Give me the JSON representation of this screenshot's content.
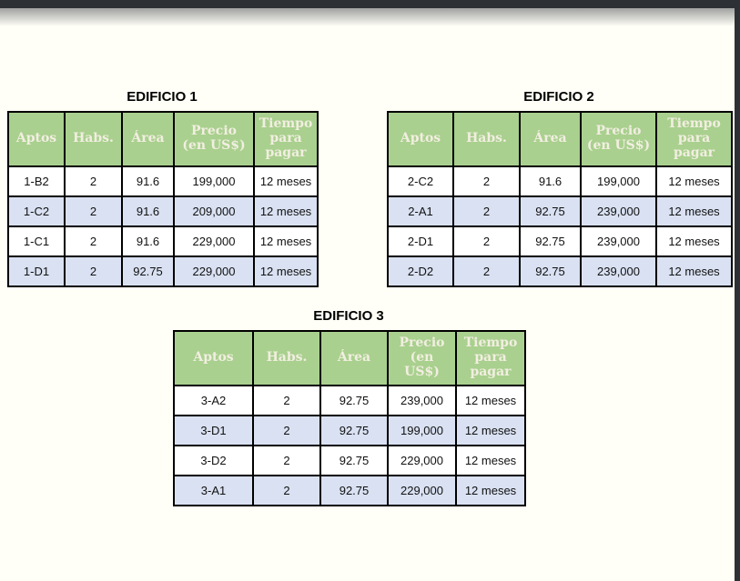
{
  "colors": {
    "header_bg": "#a9d08e",
    "header_text": "#f2eee1",
    "alt_row_bg": "#d9e1f2",
    "row_bg": "#ffffff",
    "border": "#000000",
    "chrome": "#2d3136",
    "page_bg": "#fffef7",
    "title_text": "#000000"
  },
  "tables": [
    {
      "title": "EDIFICIO 1",
      "headers": [
        "Aptos",
        "Habs.",
        "Área",
        "Precio\n(en US$)",
        "Tiempo\npara\npagar"
      ],
      "rows": [
        [
          "1-B2",
          "2",
          "91.6",
          "199,000",
          "12 meses"
        ],
        [
          "1-C2",
          "2",
          "91.6",
          "209,000",
          "12 meses"
        ],
        [
          "1-C1",
          "2",
          "91.6",
          "229,000",
          "12 meses"
        ],
        [
          "1-D1",
          "2",
          "92.75",
          "229,000",
          "12 meses"
        ]
      ]
    },
    {
      "title": "EDIFICIO 2",
      "headers": [
        "Aptos",
        "Habs.",
        "Área",
        "Precio\n(en US$)",
        "Tiempo\npara\npagar"
      ],
      "rows": [
        [
          "2-C2",
          "2",
          "91.6",
          "199,000",
          "12 meses"
        ],
        [
          "2-A1",
          "2",
          "92.75",
          "239,000",
          "12 meses"
        ],
        [
          "2-D1",
          "2",
          "92.75",
          "239,000",
          "12 meses"
        ],
        [
          "2-D2",
          "2",
          "92.75",
          "239,000",
          "12 meses"
        ]
      ]
    },
    {
      "title": "EDIFICIO 3",
      "headers": [
        "Aptos",
        "Habs.",
        "Área",
        "Precio\n(en\nUS$)",
        "Tiempo\npara\npagar"
      ],
      "rows": [
        [
          "3-A2",
          "2",
          "92.75",
          "239,000",
          "12 meses"
        ],
        [
          "3-D1",
          "2",
          "92.75",
          "199,000",
          "12 meses"
        ],
        [
          "3-D2",
          "2",
          "92.75",
          "229,000",
          "12 meses"
        ],
        [
          "3-A1",
          "2",
          "92.75",
          "229,000",
          "12 meses"
        ]
      ]
    }
  ]
}
